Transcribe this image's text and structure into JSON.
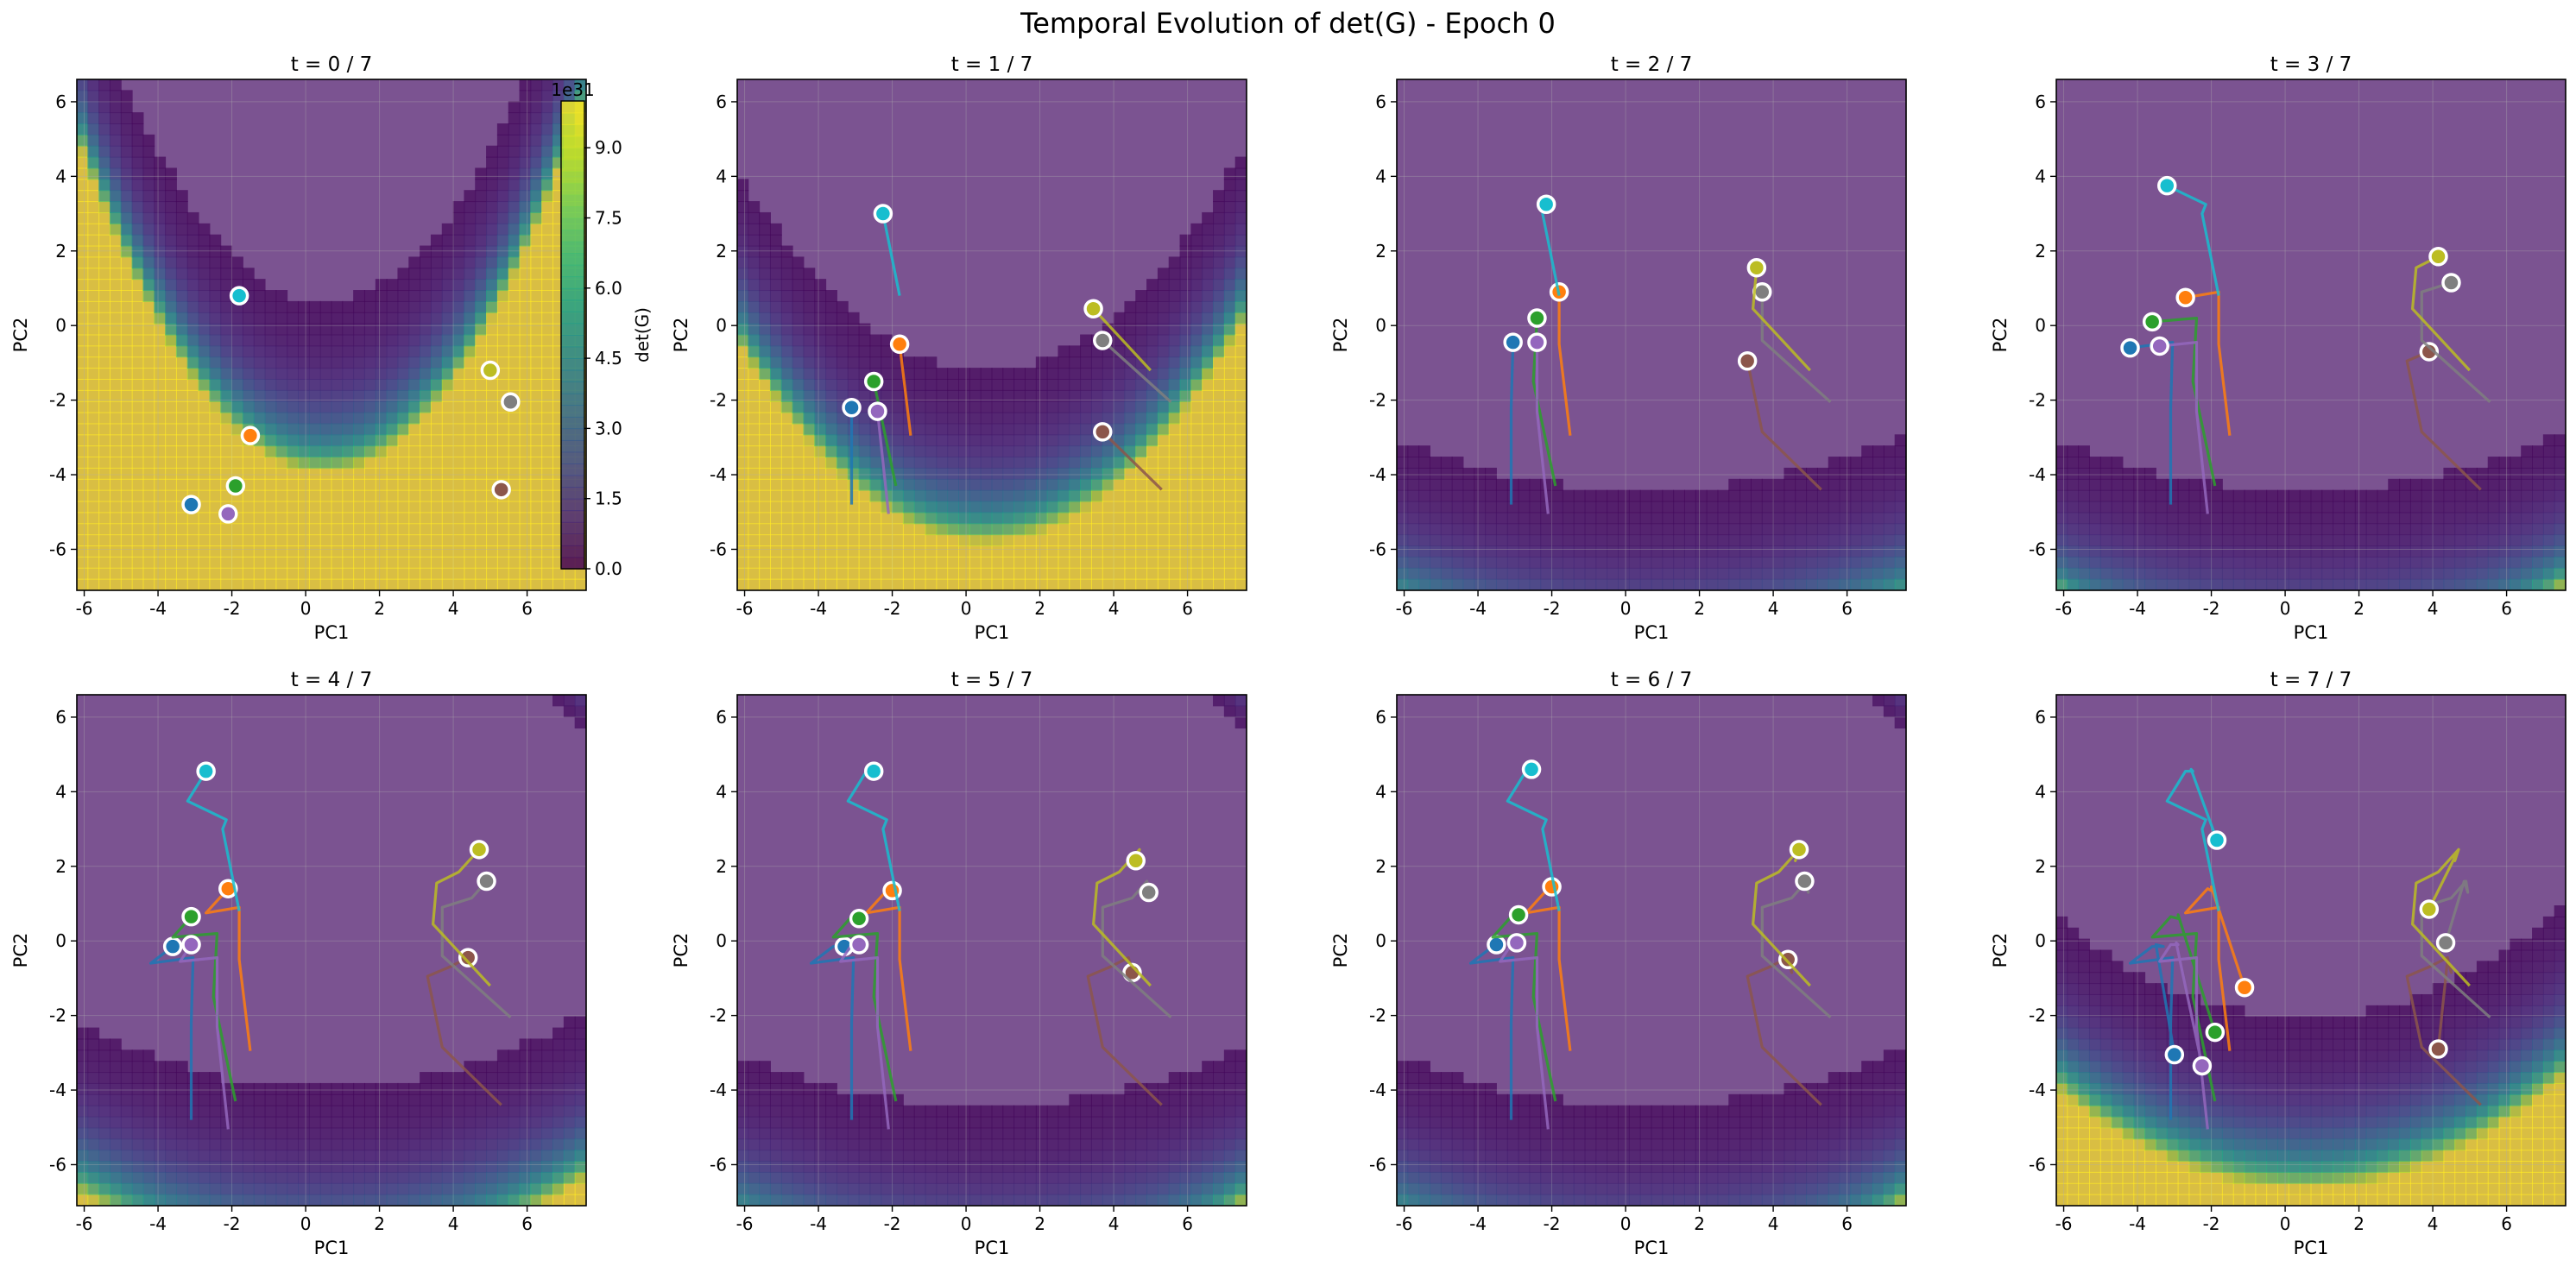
{
  "figure": {
    "title": "Temporal Evolution of det(G) - Epoch 0"
  },
  "chart_data": {
    "type": "scatter",
    "xlabel": "PC1",
    "ylabel": "PC2",
    "xlim": [
      -6.2,
      7.6
    ],
    "ylim": [
      -7.1,
      6.6
    ],
    "xticks": [
      -6,
      -4,
      -2,
      0,
      2,
      4,
      6
    ],
    "yticks": [
      -6,
      -4,
      -2,
      0,
      2,
      4,
      6
    ],
    "grid": true,
    "background_color": "#7b5391",
    "colorbar": {
      "label": "det(G)",
      "offset_text": "1e31",
      "min": 0,
      "max": 10,
      "ticks": [
        0.0,
        1.5,
        3.0,
        4.5,
        6.0,
        7.5,
        9.0
      ],
      "tick_labels": [
        "0.0",
        "1.5",
        "3.0",
        "4.5",
        "6.0",
        "7.5",
        "9.0"
      ]
    },
    "point_colors": [
      "#1f77b4",
      "#ff7f0e",
      "#2ca02c",
      "#9467bd",
      "#8c564b",
      "#7f7f7f",
      "#bcbd22",
      "#17becf",
      "#e377c2"
    ],
    "points": [
      {
        "id": "p0",
        "color": "#1f77b4",
        "trajectory": [
          [
            -3.1,
            -4.8
          ],
          [
            -3.1,
            -2.2
          ],
          [
            -3.05,
            -0.45
          ],
          [
            -4.2,
            -0.6
          ],
          [
            -3.6,
            -0.15
          ],
          [
            -3.3,
            -0.15
          ],
          [
            -3.5,
            -0.1
          ],
          [
            -3.0,
            -3.05
          ]
        ]
      },
      {
        "id": "p1",
        "color": "#ff7f0e",
        "trajectory": [
          [
            -1.5,
            -2.95
          ],
          [
            -1.8,
            -0.5
          ],
          [
            -1.8,
            0.9
          ],
          [
            -2.7,
            0.75
          ],
          [
            -2.1,
            1.4
          ],
          [
            -2.0,
            1.35
          ],
          [
            -2.0,
            1.45
          ],
          [
            -1.1,
            -1.25
          ]
        ]
      },
      {
        "id": "p2",
        "color": "#2ca02c",
        "trajectory": [
          [
            -1.9,
            -4.3
          ],
          [
            -2.5,
            -1.5
          ],
          [
            -2.4,
            0.2
          ],
          [
            -3.6,
            0.1
          ],
          [
            -3.1,
            0.65
          ],
          [
            -2.9,
            0.6
          ],
          [
            -2.9,
            0.7
          ],
          [
            -1.9,
            -2.45
          ]
        ]
      },
      {
        "id": "p3",
        "color": "#9467bd",
        "trajectory": [
          [
            -2.1,
            -5.05
          ],
          [
            -2.4,
            -2.3
          ],
          [
            -2.4,
            -0.45
          ],
          [
            -3.4,
            -0.55
          ],
          [
            -3.1,
            -0.1
          ],
          [
            -2.9,
            -0.1
          ],
          [
            -2.95,
            -0.05
          ],
          [
            -2.25,
            -3.35
          ]
        ]
      },
      {
        "id": "p4",
        "color": "#8c564b",
        "trajectory": [
          [
            5.3,
            -4.4
          ],
          [
            3.7,
            -2.85
          ],
          [
            3.3,
            -0.95
          ],
          [
            3.9,
            -0.7
          ],
          [
            4.4,
            -0.45
          ],
          [
            4.5,
            -0.85
          ],
          [
            4.4,
            -0.5
          ],
          [
            4.15,
            -2.9
          ]
        ]
      },
      {
        "id": "p5",
        "color": "#7f7f7f",
        "trajectory": [
          [
            5.55,
            -2.05
          ],
          [
            3.7,
            -0.4
          ],
          [
            3.7,
            0.9
          ],
          [
            4.5,
            1.15
          ],
          [
            4.9,
            1.6
          ],
          [
            4.95,
            1.3
          ],
          [
            4.85,
            1.6
          ],
          [
            4.35,
            -0.05
          ]
        ]
      },
      {
        "id": "p6",
        "color": "#bcbd22",
        "trajectory": [
          [
            5.0,
            -1.2
          ],
          [
            3.45,
            0.45
          ],
          [
            3.55,
            1.55
          ],
          [
            4.15,
            1.85
          ],
          [
            4.7,
            2.45
          ],
          [
            4.6,
            2.15
          ],
          [
            4.7,
            2.45
          ],
          [
            3.9,
            0.85
          ]
        ]
      },
      {
        "id": "p7",
        "color": "#17becf",
        "trajectory": [
          [
            -1.8,
            0.8
          ],
          [
            -2.25,
            3.0
          ],
          [
            -2.15,
            3.25
          ],
          [
            -3.2,
            3.75
          ],
          [
            -2.7,
            4.55
          ],
          [
            -2.5,
            4.55
          ],
          [
            -2.55,
            4.6
          ],
          [
            -1.85,
            2.7
          ]
        ]
      }
    ],
    "contour_fields": [
      {
        "center": [
          0.5,
          10.0
        ],
        "curvature": 0.02,
        "rise": 0.9,
        "scale": 1.0
      },
      {
        "center": [
          0.5,
          12.5
        ],
        "curvature": 0.012,
        "rise": 1.1,
        "scale": 0.45
      },
      {
        "center": [
          0.5,
          16.0
        ],
        "curvature": 0.003,
        "rise": 1.0,
        "scale": 0.02
      },
      {
        "center": [
          0.5,
          16.0
        ],
        "curvature": 0.003,
        "rise": 1.0,
        "scale": 0.02
      },
      {
        "center": [
          0.5,
          16.5
        ],
        "curvature": 0.004,
        "rise": 1.0,
        "scale": 0.03
      },
      {
        "center": [
          0.5,
          16.0
        ],
        "curvature": 0.003,
        "rise": 1.0,
        "scale": 0.02
      },
      {
        "center": [
          0.5,
          16.0
        ],
        "curvature": 0.003,
        "rise": 1.0,
        "scale": 0.02
      },
      {
        "center": [
          0.5,
          15.0
        ],
        "curvature": 0.006,
        "rise": 1.0,
        "scale": 0.15
      }
    ],
    "panels": [
      {
        "title": "t = 0 / 7",
        "t": 0,
        "has_colorbar": true
      },
      {
        "title": "t = 1 / 7",
        "t": 1
      },
      {
        "title": "t = 2 / 7",
        "t": 2
      },
      {
        "title": "t = 3 / 7",
        "t": 3
      },
      {
        "title": "t = 4 / 7",
        "t": 4
      },
      {
        "title": "t = 5 / 7",
        "t": 5
      },
      {
        "title": "t = 6 / 7",
        "t": 6
      },
      {
        "title": "t = 7 / 7",
        "t": 7
      }
    ]
  }
}
